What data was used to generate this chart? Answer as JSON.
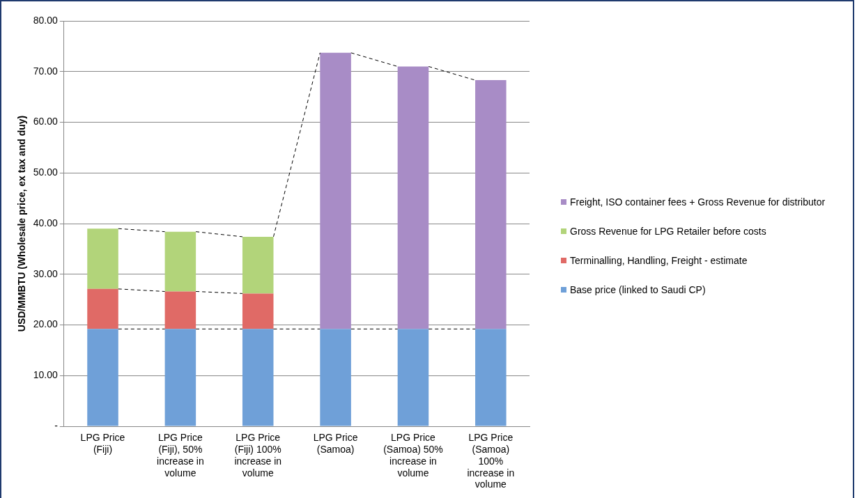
{
  "chart_data": {
    "type": "bar",
    "stacked": true,
    "ylabel": "USD/MMBTU (Wholesale price, ex tax and duy)",
    "categories": [
      "LPG Price (Fiji)",
      "LPG Price (Fiji), 50% increase in volume",
      "LPG Price (Fiji) 100% increase in volume",
      "LPG Price (Samoa)",
      "LPG Price (Samoa) 50% increase in volume",
      "LPG Price (Samoa) 100% increase in volume"
    ],
    "series": [
      {
        "name": "Base price (linked to Saudi CP)",
        "color": "#6fa0d8",
        "values": [
          19.2,
          19.2,
          19.2,
          19.2,
          19.2,
          19.2
        ]
      },
      {
        "name": "Terminalling, Handling, Freight - estimate",
        "color": "#e06a66",
        "values": [
          7.9,
          7.4,
          7.0,
          null,
          null,
          null
        ]
      },
      {
        "name": "Gross Revenue for LPG Retailer before costs",
        "color": "#b2d47a",
        "values": [
          11.9,
          11.8,
          11.2,
          null,
          null,
          null
        ]
      },
      {
        "name": "Freight, ISO container fees + Gross Revenue for distributor",
        "color": "#a88cc6",
        "values": [
          null,
          null,
          null,
          54.5,
          51.8,
          49.1
        ]
      }
    ],
    "ylim": [
      0,
      80
    ],
    "yticks": [
      {
        "value": 0,
        "label": "-"
      },
      {
        "value": 10,
        "label": "10.00"
      },
      {
        "value": 20,
        "label": "20.00"
      },
      {
        "value": 30,
        "label": "30.00"
      },
      {
        "value": 40,
        "label": "40.00"
      },
      {
        "value": 50,
        "label": "50.00"
      },
      {
        "value": 60,
        "label": "60.00"
      },
      {
        "value": 70,
        "label": "70.00"
      },
      {
        "value": 80,
        "label": "80.00"
      }
    ],
    "grid": "y",
    "legend": "right"
  }
}
